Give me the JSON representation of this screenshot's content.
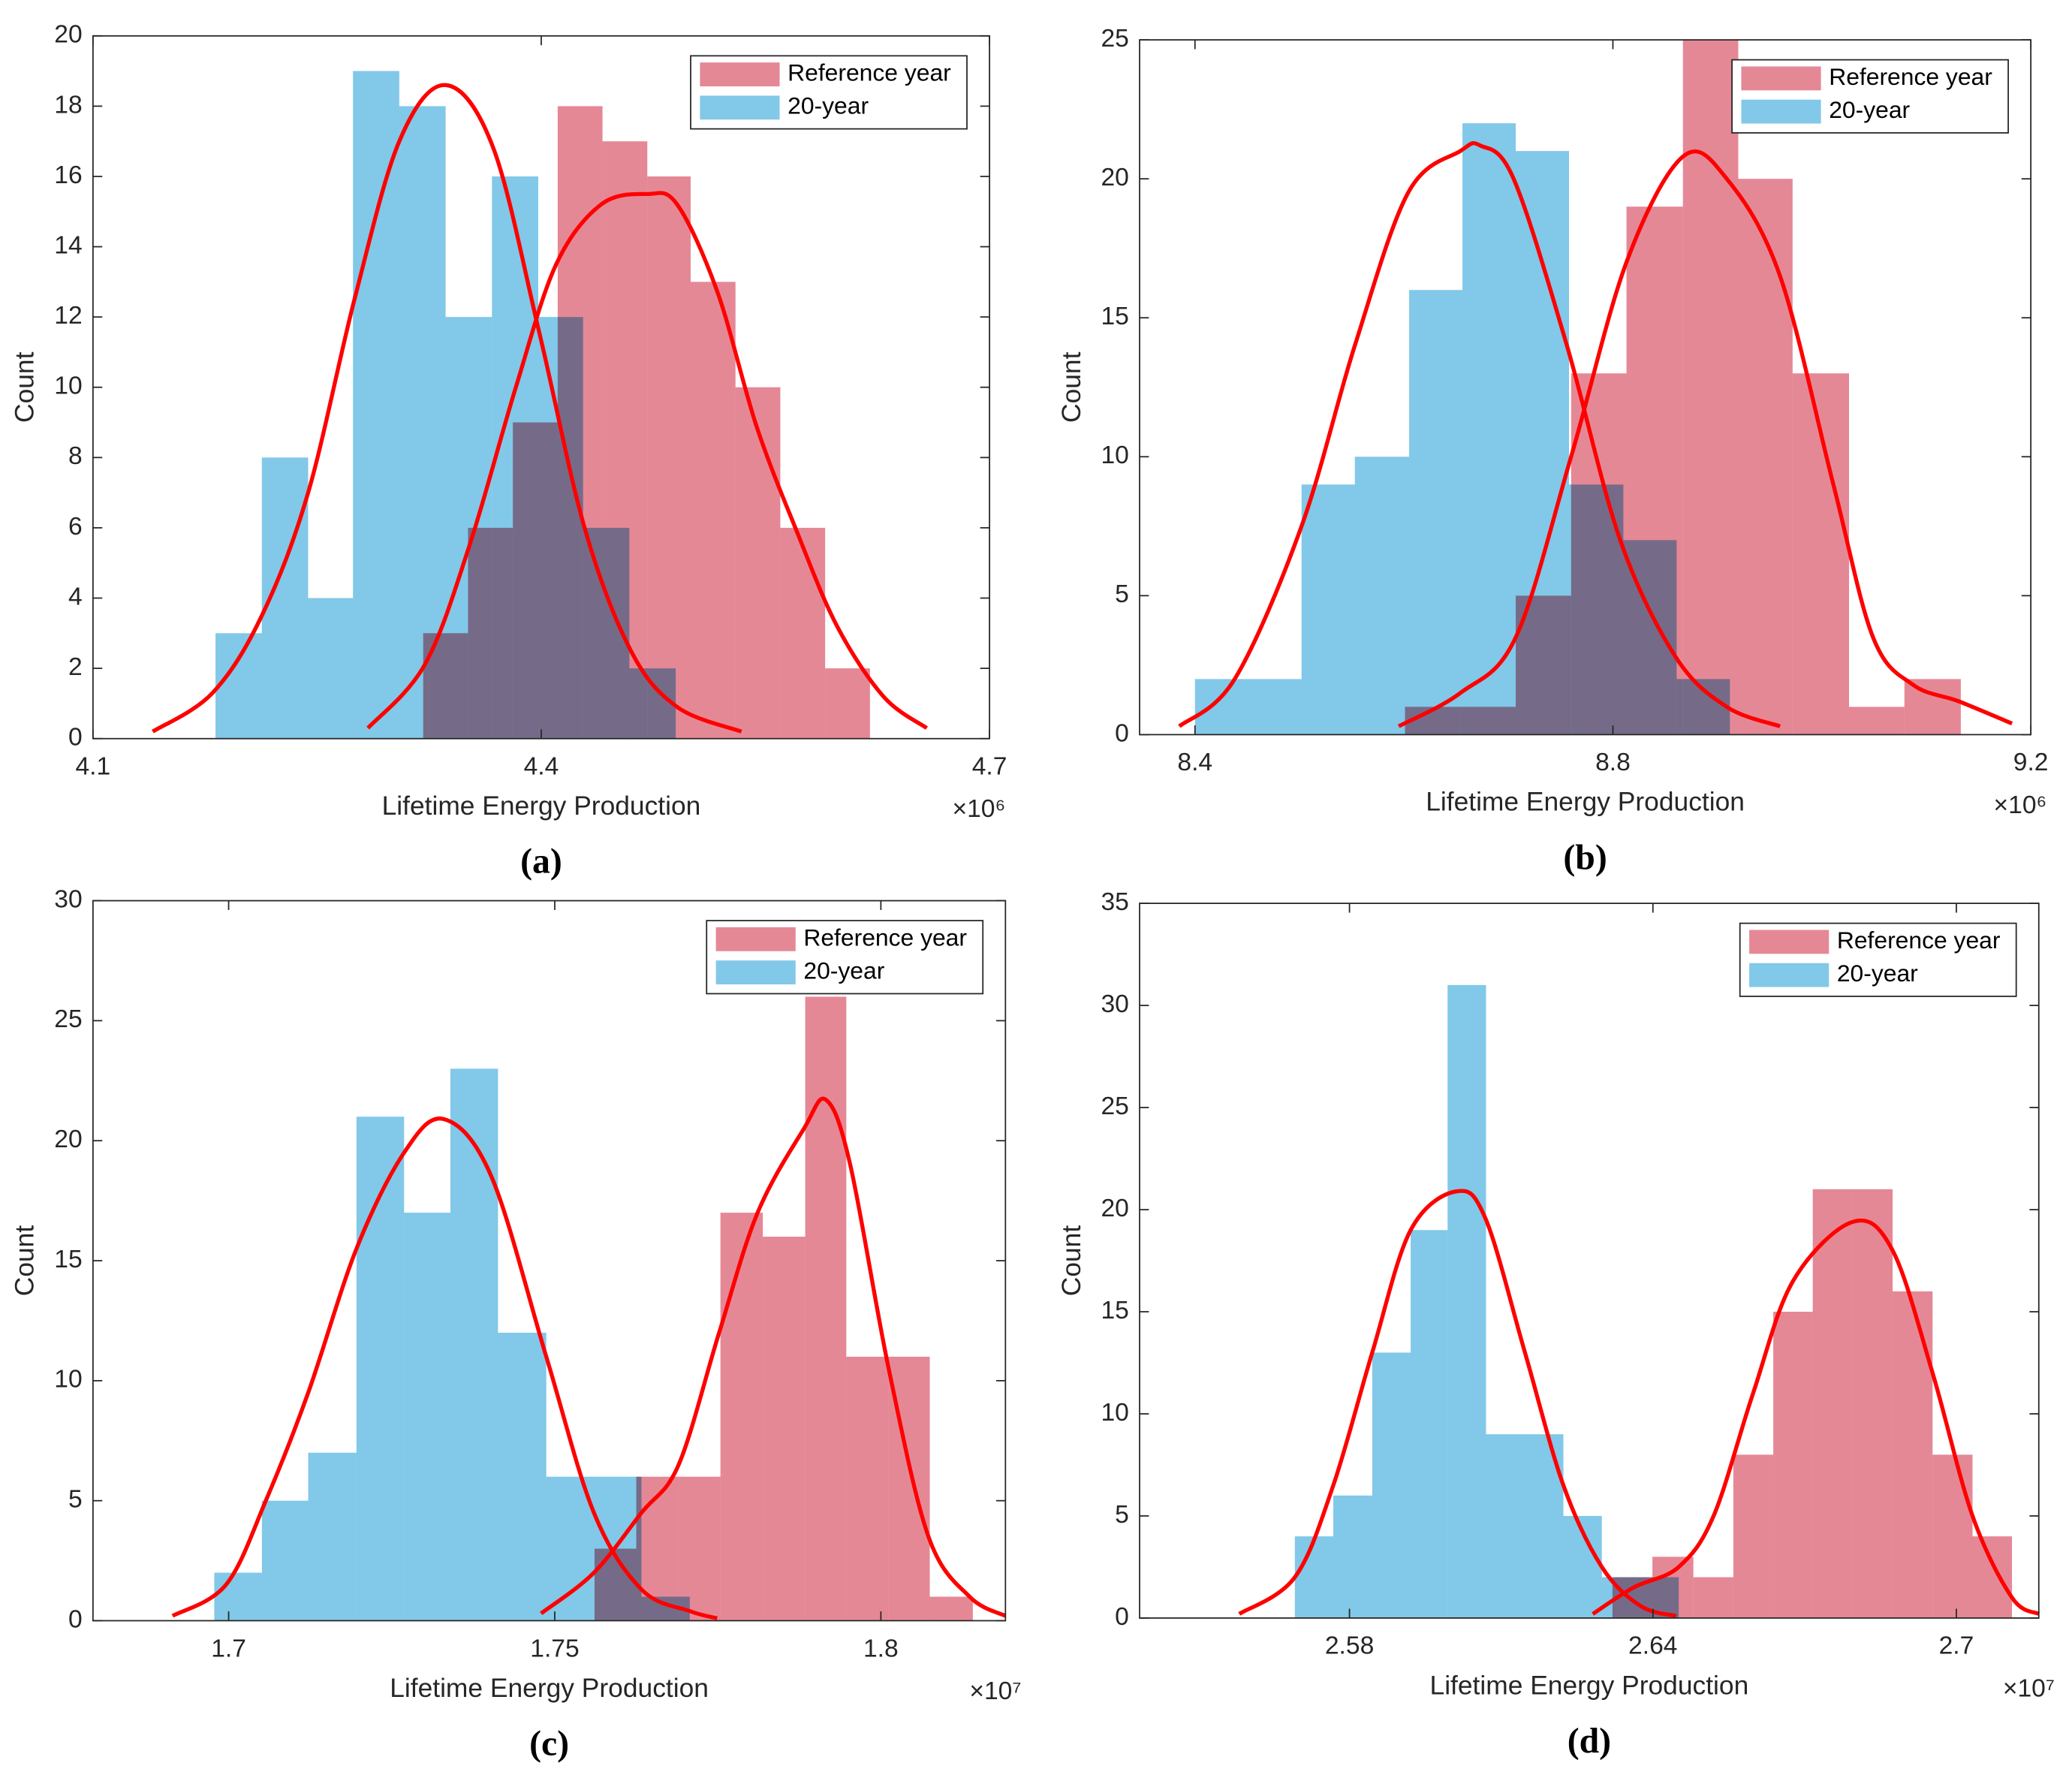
{
  "chart_data": [
    {
      "type": "histogram",
      "panel_label": "(a)",
      "xlabel": "Lifetime Energy Production",
      "ylabel": "Count",
      "x_multiplier": "×10⁶",
      "xlim": [
        4.1,
        4.7
      ],
      "xticks": [
        4.1,
        4.4,
        4.7
      ],
      "ylim": [
        0,
        20
      ],
      "yticks": [
        0,
        2,
        4,
        6,
        8,
        10,
        12,
        14,
        16,
        18,
        20
      ],
      "legend": "upper right",
      "series": [
        {
          "name": "Reference year",
          "color": "#e58896",
          "fit_color": "#ff0000",
          "bins": [
            4.321,
            4.351,
            4.381,
            4.411,
            4.441,
            4.471,
            4.5,
            4.53,
            4.56,
            4.59,
            4.62
          ],
          "values": [
            3,
            6,
            9,
            18,
            17,
            16,
            13,
            10,
            6,
            2
          ],
          "fit_x": [
            4.284,
            4.322,
            4.352,
            4.383,
            4.41,
            4.44,
            4.471,
            4.491,
            4.518,
            4.544,
            4.571,
            4.598,
            4.629,
            4.658
          ],
          "fit_values": [
            0.3,
            2.1,
            5.5,
            10,
            13.5,
            15.2,
            15.5,
            15.2,
            12.7,
            8.9,
            5.9,
            3.2,
            1.2,
            0.3
          ]
        },
        {
          "name": "20-year",
          "color": "#82c8e8",
          "fit_color": "#ff0000",
          "bins": [
            4.182,
            4.213,
            4.244,
            4.274,
            4.305,
            4.336,
            4.367,
            4.398,
            4.428,
            4.459,
            4.49
          ],
          "values": [
            3,
            8,
            4,
            19,
            18,
            12,
            16,
            12,
            6,
            2
          ],
          "fit_x": [
            4.14,
            4.18,
            4.213,
            4.244,
            4.275,
            4.305,
            4.336,
            4.368,
            4.399,
            4.429,
            4.46,
            4.491,
            4.534
          ],
          "fit_values": [
            0.2,
            1.3,
            3.5,
            7,
            12.5,
            17,
            18.6,
            16.8,
            11.5,
            6,
            2.5,
            0.9,
            0.2
          ]
        }
      ]
    },
    {
      "type": "histogram",
      "panel_label": "(b)",
      "xlabel": "Lifetime Energy Production",
      "ylabel": "Count",
      "x_multiplier": "×10⁶",
      "xlim": [
        8.347,
        9.2
      ],
      "xticks": [
        8.4,
        8.8,
        9.2
      ],
      "ylim": [
        0,
        25
      ],
      "yticks": [
        0,
        5,
        10,
        15,
        20,
        25
      ],
      "legend": "upper right",
      "series": [
        {
          "name": "Reference year",
          "color": "#e58896",
          "fit_color": "#ff0000",
          "bins": [
            8.601,
            8.654,
            8.707,
            8.76,
            8.813,
            8.867,
            8.92,
            8.972,
            9.026,
            9.079,
            9.133
          ],
          "values": [
            1,
            1,
            5,
            13,
            19,
            25,
            20,
            13,
            1,
            2
          ],
          "fit_x": [
            8.595,
            8.654,
            8.707,
            8.76,
            8.813,
            8.867,
            8.909,
            8.96,
            9.011,
            9.049,
            9.087,
            9.131,
            9.182
          ],
          "fit_values": [
            0.3,
            1.5,
            3.5,
            10,
            17,
            20.8,
            20,
            16.5,
            9,
            3.5,
            1.8,
            1.2,
            0.4
          ]
        },
        {
          "name": "20-year",
          "color": "#82c8e8",
          "fit_color": "#ff0000",
          "bins": [
            8.4,
            8.451,
            8.502,
            8.553,
            8.605,
            8.656,
            8.707,
            8.758,
            8.81,
            8.861,
            8.912
          ],
          "values": [
            2,
            2,
            9,
            10,
            16,
            22,
            21,
            9,
            7,
            2
          ],
          "fit_x": [
            8.385,
            8.438,
            8.502,
            8.553,
            8.604,
            8.654,
            8.673,
            8.705,
            8.756,
            8.807,
            8.86,
            8.909,
            8.96
          ],
          "fit_values": [
            0.3,
            2,
            7.5,
            14,
            19.5,
            21,
            21.2,
            20,
            14,
            7,
            2.8,
            1,
            0.3
          ]
        }
      ]
    },
    {
      "type": "histogram",
      "panel_label": "(c)",
      "xlabel": "Lifetime Energy Production",
      "ylabel": "Count",
      "x_multiplier": "×10⁷",
      "xlim": [
        1.6792,
        1.8191
      ],
      "xticks": [
        1.7,
        1.75,
        1.8
      ],
      "ylim": [
        0,
        30
      ],
      "yticks": [
        0,
        5,
        10,
        15,
        20,
        25,
        30
      ],
      "legend": "upper right",
      "series": [
        {
          "name": "Reference year",
          "color": "#e58896",
          "fit_color": "#ff0000",
          "bins": [
            1.7561,
            1.7625,
            1.769,
            1.7754,
            1.7819,
            1.7884,
            1.7947,
            1.8012,
            1.8075,
            1.8141
          ],
          "values": [
            3,
            6,
            6,
            17,
            16,
            26,
            11,
            11,
            1
          ],
          "fit_x": [
            1.7479,
            1.756,
            1.7633,
            1.769,
            1.7752,
            1.7811,
            1.7882,
            1.7916,
            1.7953,
            1.8012,
            1.8073,
            1.8136,
            1.8191
          ],
          "fit_values": [
            0.3,
            2,
            4.5,
            6.5,
            12,
            17,
            20.5,
            21.7,
            19,
            10.5,
            3.5,
            1,
            0.2
          ]
        },
        {
          "name": "20-year",
          "color": "#82c8e8",
          "fit_color": "#ff0000",
          "bins": [
            1.6978,
            1.7051,
            1.7122,
            1.7196,
            1.7269,
            1.734,
            1.7413,
            1.7487,
            1.756,
            1.7633,
            1.7707
          ],
          "values": [
            2,
            5,
            7,
            21,
            17,
            23,
            12,
            6,
            6,
            1
          ],
          "fit_x": [
            1.6914,
            1.6996,
            1.7057,
            1.7122,
            1.7196,
            1.7269,
            1.733,
            1.7403,
            1.7487,
            1.756,
            1.7633,
            1.7707,
            1.7749
          ],
          "fit_values": [
            0.2,
            1.5,
            5,
            9.5,
            15.5,
            19.5,
            20.9,
            18.5,
            11,
            4.5,
            1.3,
            0.4,
            0.1
          ]
        }
      ]
    },
    {
      "type": "histogram",
      "panel_label": "(d)",
      "xlabel": "Lifetime Energy Production",
      "ylabel": "Count",
      "x_multiplier": "×10⁷",
      "xlim": [
        2.5385,
        2.7163
      ],
      "xticks": [
        2.58,
        2.64,
        2.7
      ],
      "ylim": [
        0,
        35
      ],
      "yticks": [
        0,
        5,
        10,
        15,
        20,
        25,
        30,
        35
      ],
      "legend": "upper right",
      "series": [
        {
          "name": "Reference year",
          "color": "#e58896",
          "fit_color": "#ff0000",
          "bins": [
            2.632,
            2.6399,
            2.648,
            2.6559,
            2.6638,
            2.6716,
            2.6795,
            2.6874,
            2.6953,
            2.7032,
            2.711
          ],
          "values": [
            2,
            3,
            2,
            8,
            15,
            21,
            21,
            16,
            8,
            4
          ],
          "fit_x": [
            2.6281,
            2.6362,
            2.6451,
            2.652,
            2.6598,
            2.6677,
            2.6795,
            2.6874,
            2.6953,
            2.7032,
            2.711,
            2.7163
          ],
          "fit_values": [
            0.2,
            1.5,
            2.5,
            5,
            11,
            16.5,
            19.4,
            18,
            12,
            5,
            1,
            0.2
          ]
        },
        {
          "name": "20-year",
          "color": "#82c8e8",
          "fit_color": "#ff0000",
          "bins": [
            2.5692,
            2.5768,
            2.5845,
            2.5921,
            2.5994,
            2.607,
            2.6147,
            2.6223,
            2.6299,
            2.6375,
            2.6451
          ],
          "values": [
            4,
            6,
            13,
            19,
            31,
            9,
            9,
            5,
            2,
            2
          ],
          "fit_x": [
            2.5582,
            2.5692,
            2.5768,
            2.5845,
            2.5921,
            2.6013,
            2.607,
            2.6147,
            2.6223,
            2.6299,
            2.6375,
            2.6446
          ],
          "fit_values": [
            0.2,
            2,
            6.5,
            13,
            19,
            20.9,
            19.5,
            13,
            6.5,
            2.5,
            0.6,
            0.1
          ]
        }
      ]
    }
  ]
}
